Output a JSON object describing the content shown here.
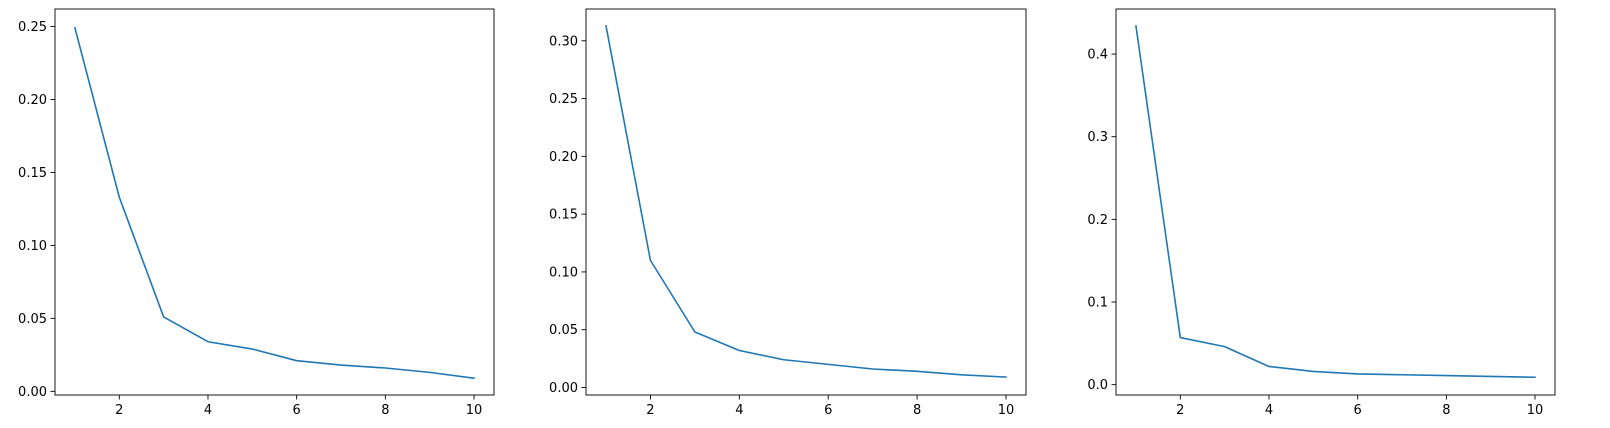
{
  "chart_data": [
    {
      "type": "line",
      "title": "",
      "xlabel": "",
      "ylabel": "",
      "x": [
        1,
        2,
        3,
        4,
        5,
        6,
        7,
        8,
        9,
        10
      ],
      "xlim": [
        0.55,
        10.45
      ],
      "ylim": [
        -0.0025,
        0.262
      ],
      "xticks": [
        2,
        4,
        6,
        8,
        10
      ],
      "xtick_labels": [
        "2",
        "4",
        "6",
        "8",
        "10"
      ],
      "yticks": [
        0.0,
        0.05,
        0.1,
        0.15,
        0.2,
        0.25
      ],
      "ytick_labels": [
        "0.00",
        "0.05",
        "0.10",
        "0.15",
        "0.20",
        "0.25"
      ],
      "grid": false,
      "series": [
        {
          "values": [
            0.249,
            0.133,
            0.051,
            0.034,
            0.029,
            0.021,
            0.018,
            0.016,
            0.013,
            0.009
          ],
          "color": "#1f77b4"
        }
      ]
    },
    {
      "type": "line",
      "title": "",
      "xlabel": "",
      "ylabel": "",
      "x": [
        1,
        2,
        3,
        4,
        5,
        6,
        7,
        8,
        9,
        10
      ],
      "xlim": [
        0.55,
        10.45
      ],
      "ylim": [
        -0.0065,
        0.3275
      ],
      "xticks": [
        2,
        4,
        6,
        8,
        10
      ],
      "xtick_labels": [
        "2",
        "4",
        "6",
        "8",
        "10"
      ],
      "yticks": [
        0.0,
        0.05,
        0.1,
        0.15,
        0.2,
        0.25,
        0.3
      ],
      "ytick_labels": [
        "0.00",
        "0.05",
        "0.10",
        "0.15",
        "0.20",
        "0.25",
        "0.30"
      ],
      "grid": false,
      "series": [
        {
          "values": [
            0.313,
            0.11,
            0.048,
            0.032,
            0.024,
            0.02,
            0.016,
            0.014,
            0.011,
            0.009
          ],
          "color": "#1f77b4"
        }
      ]
    },
    {
      "type": "line",
      "title": "",
      "xlabel": "",
      "ylabel": "",
      "x": [
        1,
        2,
        3,
        4,
        5,
        6,
        7,
        8,
        9,
        10
      ],
      "xlim": [
        0.55,
        10.45
      ],
      "ylim": [
        -0.0125,
        0.4545
      ],
      "xticks": [
        2,
        4,
        6,
        8,
        10
      ],
      "xtick_labels": [
        "2",
        "4",
        "6",
        "8",
        "10"
      ],
      "yticks": [
        0.0,
        0.1,
        0.2,
        0.3,
        0.4
      ],
      "ytick_labels": [
        "0.0",
        "0.1",
        "0.2",
        "0.3",
        "0.4"
      ],
      "grid": false,
      "series": [
        {
          "values": [
            0.434,
            0.057,
            0.046,
            0.022,
            0.016,
            0.013,
            0.012,
            0.011,
            0.01,
            0.009
          ],
          "color": "#1f77b4"
        }
      ]
    }
  ]
}
